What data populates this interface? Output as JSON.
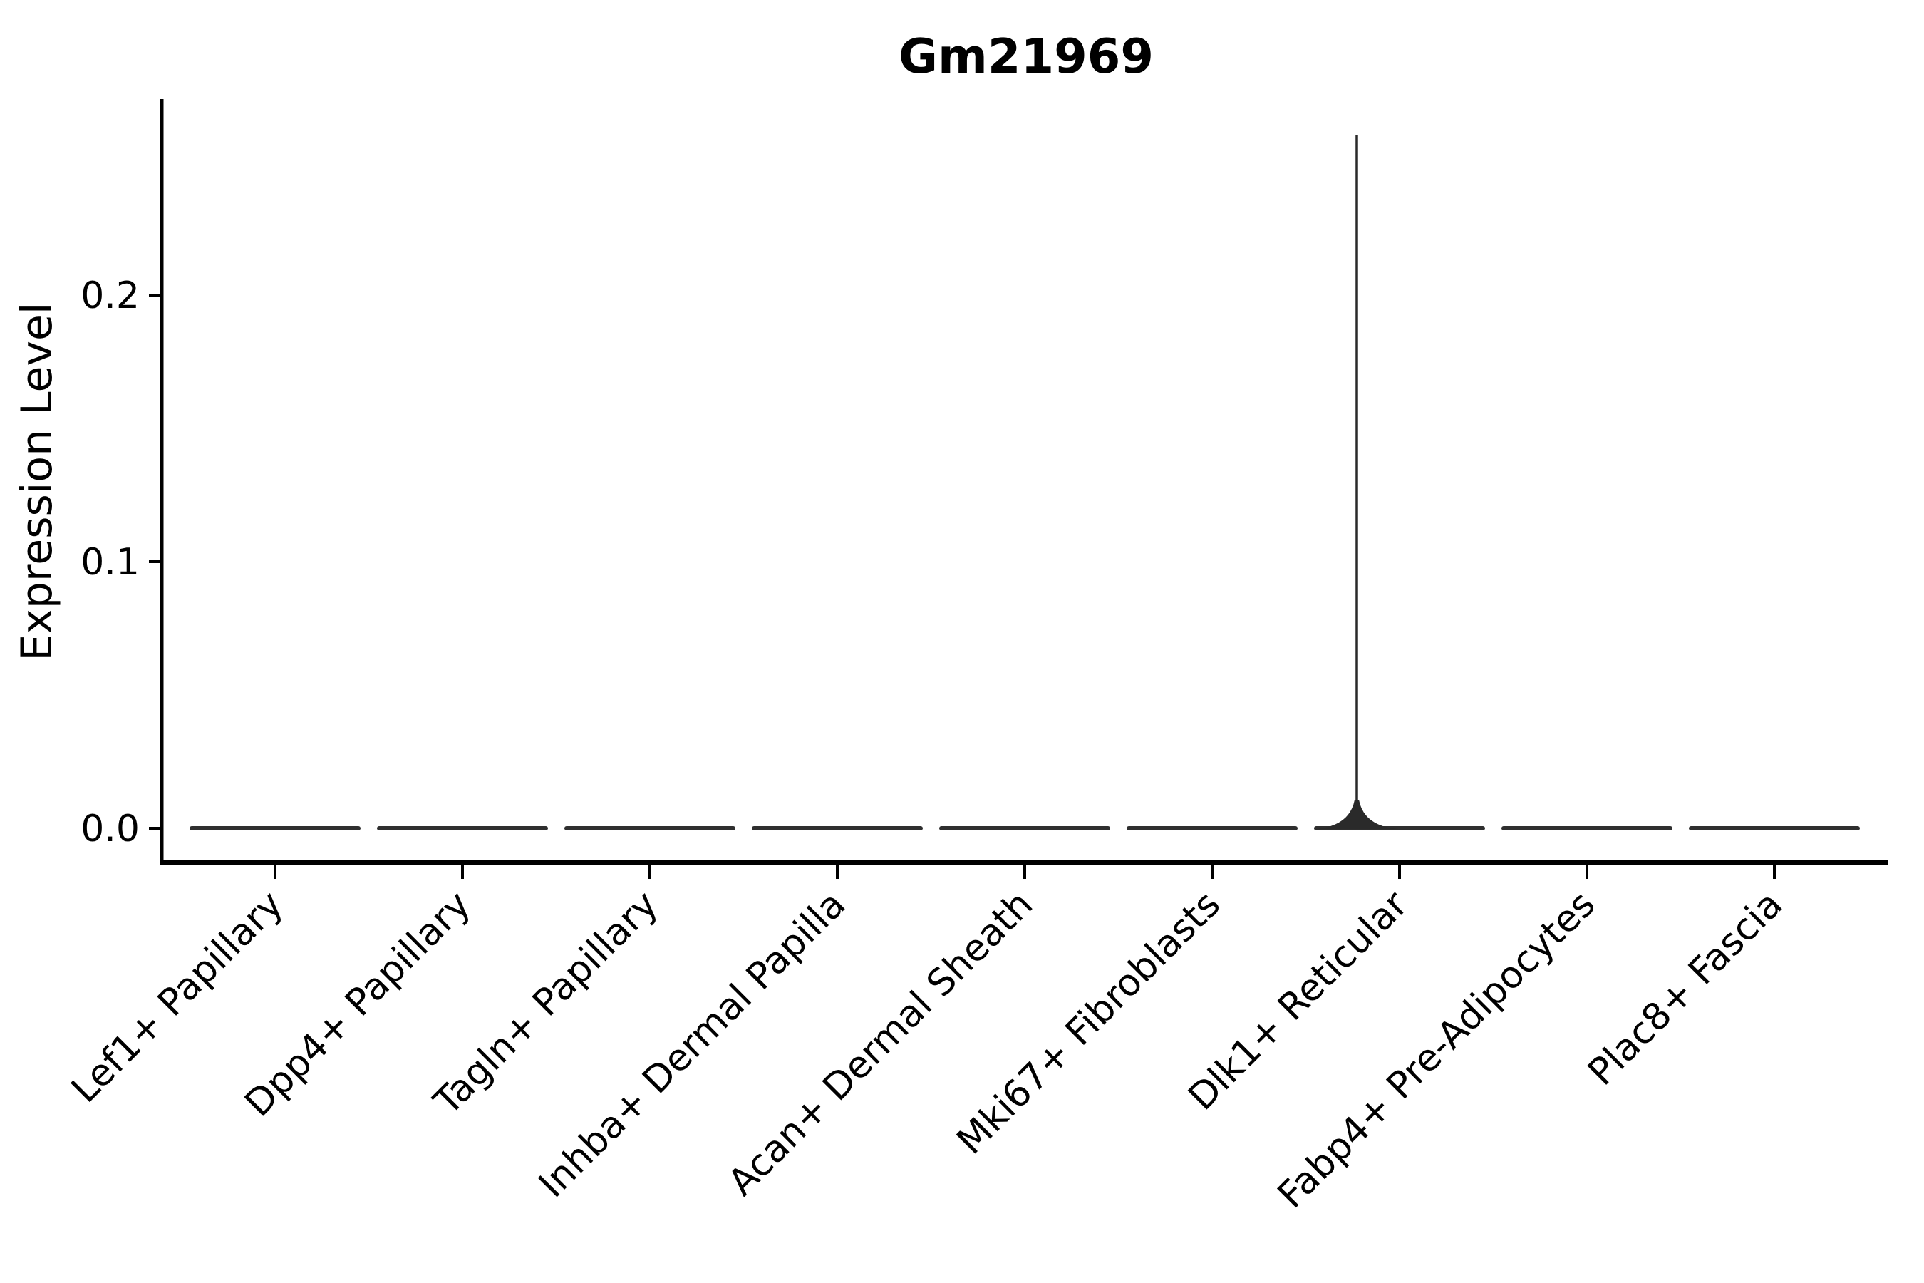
{
  "figure": {
    "background": "#ffffff"
  },
  "chart_data": {
    "type": "violin",
    "title": "Gm21969",
    "xlabel": "",
    "ylabel": "Expression Level",
    "categories": [
      "Lef1+ Papillary",
      "Dpp4+ Papillary",
      "Tagln+ Papillary",
      "Inhba+ Dermal Papilla",
      "Acan+ Dermal Sheath",
      "Mki67+ Fibroblasts",
      "Dlk1+ Reticular",
      "Fabp4+ Pre-Adipocytes",
      "Plac8+ Fascia"
    ],
    "series": [
      {
        "name": "max_expression",
        "values": [
          0,
          0,
          0,
          0,
          0,
          0,
          0.26,
          0,
          0
        ]
      }
    ],
    "annotations": "All violins collapsed to a flat line at 0.0; Dlk1+ Reticular shows a single thin density spike reaching ~0.26",
    "y_tick_labels": [
      "0.0",
      "0.1",
      "0.2"
    ],
    "y_tick_values": [
      0.0,
      0.1,
      0.2
    ],
    "ylim": [
      -0.013,
      0.273
    ],
    "x_tick_rotation_deg": 45,
    "grid": false,
    "legend_position": "none",
    "colors": {
      "violin": "#2f2f2f",
      "spike": "#2a2a2a",
      "axis": "#000000",
      "text": "#000000",
      "background": "#ffffff"
    }
  }
}
